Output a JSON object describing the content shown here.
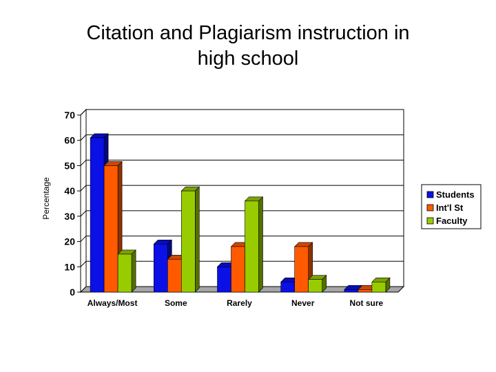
{
  "slide": {
    "title_line1": "Citation and Plagiarism instruction in",
    "title_line2": "high school"
  },
  "chart_data": {
    "type": "bar",
    "title": "Citation and Plagiarism instruction in high school",
    "xlabel": "",
    "ylabel": "Percentage",
    "ylim": [
      0,
      70
    ],
    "yticks": [
      0,
      10,
      20,
      30,
      40,
      50,
      60,
      70
    ],
    "grid": true,
    "legend_position": "right",
    "categories": [
      "Always/Most",
      "Some",
      "Rarely",
      "Never",
      "Not sure"
    ],
    "series": [
      {
        "name": "Students",
        "color": "#0a10e6",
        "values": [
          61,
          19,
          10,
          4,
          1
        ]
      },
      {
        "name": "Int'l St",
        "color": "#ff5a00",
        "values": [
          50,
          13,
          18,
          18,
          1
        ]
      },
      {
        "name": "Faculty",
        "color": "#99cc00",
        "values": [
          15,
          40,
          36,
          5,
          4
        ]
      }
    ]
  }
}
